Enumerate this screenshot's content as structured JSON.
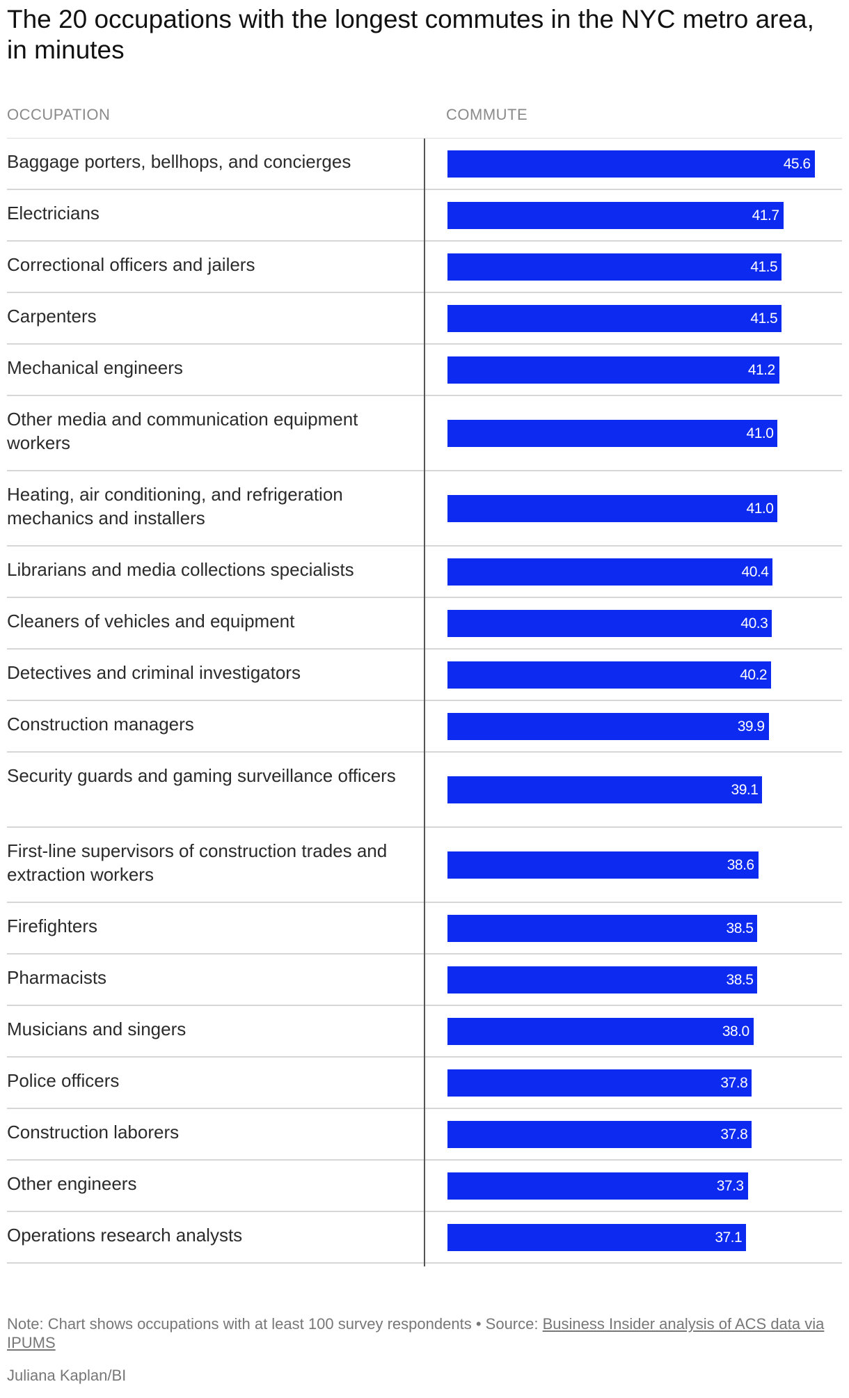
{
  "title": "The 20 occupations with the longest commutes in the NYC metro area, in minutes",
  "columns": {
    "occupation": "OCCUPATION",
    "commute": "COMMUTE"
  },
  "note": {
    "text": "Note: Chart shows occupations with at least 100 survey respondents",
    "separator": "•",
    "source_prefix": "Source:",
    "source_link": "Business Insider analysis of ACS data via IPUMS"
  },
  "credit": "Juliana Kaplan/BI",
  "colors": {
    "bar": "#0d2af0",
    "bar_label": "#ffffff"
  },
  "chart_data": {
    "type": "bar",
    "orientation": "horizontal",
    "title": "The 20 occupations with the longest commutes in the NYC metro area, in minutes",
    "xlabel": "COMMUTE",
    "ylabel": "OCCUPATION",
    "xlim": [
      0,
      48
    ],
    "grid": false,
    "categories": [
      "Baggage porters, bellhops, and concierges",
      "Electricians",
      "Correctional officers and jailers",
      "Carpenters",
      "Mechanical engineers",
      "Other media and communication equipment workers",
      "Heating, air conditioning, and refrigeration mechanics and installers",
      "Librarians and media collections specialists",
      "Cleaners of vehicles and equipment",
      "Detectives and criminal investigators",
      "Construction managers",
      "Security guards and gaming surveillance officers",
      "First-line supervisors of construction trades and extraction workers",
      "Firefighters",
      "Pharmacists",
      "Musicians and singers",
      "Police officers",
      "Construction laborers",
      "Other engineers",
      "Operations research analysts"
    ],
    "values": [
      45.6,
      41.7,
      41.5,
      41.5,
      41.2,
      41.0,
      41.0,
      40.4,
      40.3,
      40.2,
      39.9,
      39.1,
      38.6,
      38.5,
      38.5,
      38.0,
      37.8,
      37.8,
      37.3,
      37.1
    ],
    "value_labels": [
      "45.6",
      "41.7",
      "41.5",
      "41.5",
      "41.2",
      "41.0",
      "41.0",
      "40.4",
      "40.3",
      "40.2",
      "39.9",
      "39.1",
      "38.6",
      "38.5",
      "38.5",
      "38.0",
      "37.8",
      "37.8",
      "37.3",
      "37.1"
    ]
  }
}
